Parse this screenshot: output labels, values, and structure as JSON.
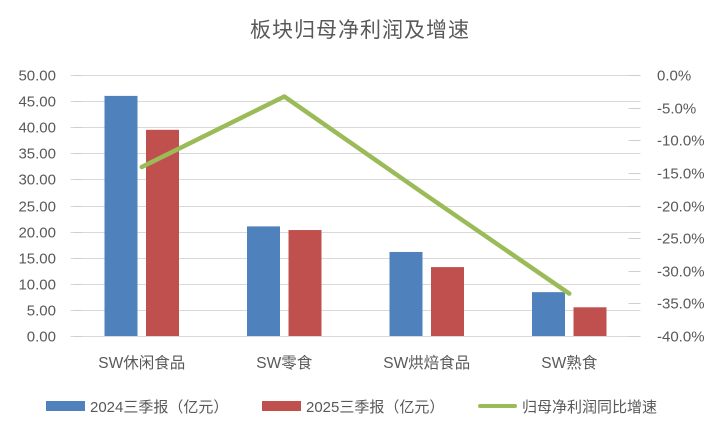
{
  "title": "板块归母净利润及增速",
  "chart_data": {
    "type": "bar",
    "subtype": "grouped bars with secondary-axis line (combo)",
    "title": "板块归母净利润及增速",
    "categories": [
      "SW休闲食品",
      "SW零食",
      "SW烘焙食品",
      "SW熟食"
    ],
    "series": [
      {
        "name": "2024三季报（亿元）",
        "type": "bar",
        "axis": "left",
        "color": "#4F81BD",
        "values": [
          46.0,
          21.0,
          16.1,
          8.4
        ]
      },
      {
        "name": "2025三季报（亿元）",
        "type": "bar",
        "axis": "left",
        "color": "#C0504D",
        "values": [
          39.5,
          20.3,
          13.2,
          5.5
        ]
      },
      {
        "name": "归母净利润同比增速",
        "type": "line",
        "axis": "right",
        "color": "#9BBB59",
        "values": [
          -14.1,
          -3.3,
          -18.5,
          -33.5
        ],
        "unit": "%"
      }
    ],
    "left_axis": {
      "min": 0,
      "max": 50,
      "step": 5,
      "labels": [
        "50.00",
        "45.00",
        "40.00",
        "35.00",
        "30.00",
        "25.00",
        "20.00",
        "15.00",
        "10.00",
        "5.00",
        "0.00"
      ]
    },
    "right_axis": {
      "min": -40,
      "max": 0,
      "step": 5,
      "labels": [
        "0.0%",
        "-5.0%",
        "-10.0%",
        "-15.0%",
        "-20.0%",
        "-25.0%",
        "-30.0%",
        "-35.0%",
        "-40.0%"
      ]
    },
    "grid": true,
    "legend_position": "bottom"
  },
  "colors": {
    "bar_2024": "#4F81BD",
    "bar_2025": "#C0504D",
    "growth_line": "#9BBB59",
    "gridline": "#D9D9D9",
    "tick": "#CFCFCF",
    "axis_text": "#595959",
    "title_text": "#595959",
    "background": "#FFFFFF"
  }
}
